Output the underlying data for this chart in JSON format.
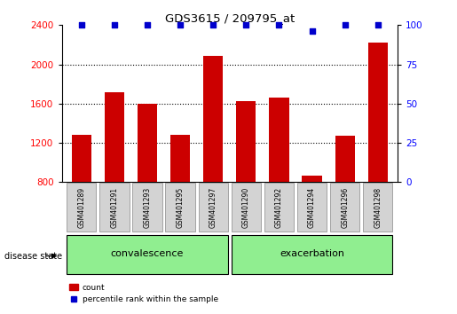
{
  "title": "GDS3615 / 209795_at",
  "samples": [
    "GSM401289",
    "GSM401291",
    "GSM401293",
    "GSM401295",
    "GSM401297",
    "GSM401290",
    "GSM401292",
    "GSM401294",
    "GSM401296",
    "GSM401298"
  ],
  "counts": [
    1280,
    1720,
    1600,
    1280,
    2090,
    1630,
    1660,
    870,
    1270,
    2220
  ],
  "percentiles": [
    100,
    100,
    100,
    100,
    100,
    100,
    100,
    96,
    100,
    100
  ],
  "group_labels": [
    "convalescence",
    "exacerbation"
  ],
  "n_conv": 5,
  "bar_color": "#CC0000",
  "dot_color": "#0000CC",
  "ylim_left": [
    800,
    2400
  ],
  "ylim_right": [
    0,
    100
  ],
  "yticks_left": [
    800,
    1200,
    1600,
    2000,
    2400
  ],
  "yticks_right": [
    0,
    25,
    50,
    75,
    100
  ],
  "dotted_lines": [
    1200,
    1600,
    2000
  ],
  "bg_color": "#ffffff",
  "tick_bg": "#d3d3d3",
  "green_light": "#90EE90",
  "green_dark": "#4CBB17",
  "label_count": "count",
  "label_percentile": "percentile rank within the sample",
  "disease_state_label": "disease state"
}
